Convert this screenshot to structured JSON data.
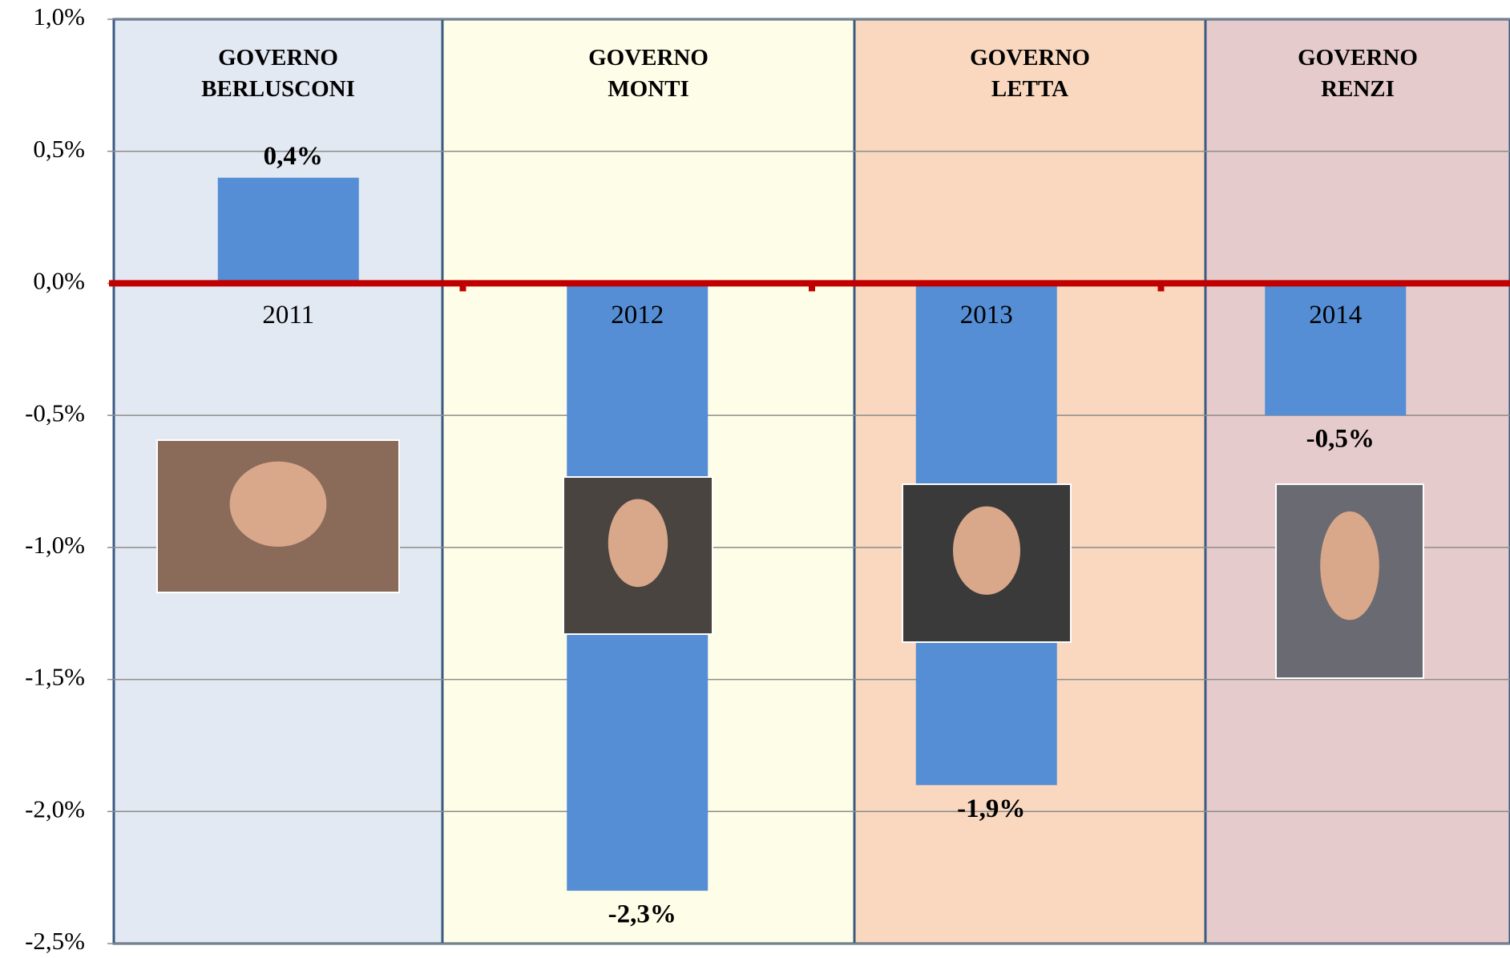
{
  "chart_data": {
    "type": "bar",
    "categories": [
      "2011",
      "2012",
      "2013",
      "2014"
    ],
    "values": [
      0.4,
      -2.3,
      -1.9,
      -0.5
    ],
    "value_labels": [
      "0,4%",
      "-2,3%",
      "-1,9%",
      "-0,5%"
    ],
    "color": "#558ed5",
    "ylim": [
      -2.5,
      1.0
    ],
    "yticks": [
      {
        "value": -2.5,
        "label": "-2,5%"
      },
      {
        "value": -2.0,
        "label": "-2,0%"
      },
      {
        "value": -1.5,
        "label": "-1,5%"
      },
      {
        "value": -1.0,
        "label": "-1,0%"
      },
      {
        "value": -0.5,
        "label": "-0,5%"
      },
      {
        "value": 0.0,
        "label": "0,0%"
      },
      {
        "value": 0.5,
        "label": "0,5%"
      },
      {
        "value": 1.0,
        "label": "1,0%"
      }
    ],
    "grid": true,
    "zero_line_color": "#c00000",
    "panels": [
      {
        "label": "GOVERNO BERLUSCONI",
        "color": "#e3e9f3"
      },
      {
        "label": "GOVERNO MONTI",
        "color": "#fefee8"
      },
      {
        "label": "GOVERNO LETTA",
        "color": "#f9d8bf"
      },
      {
        "label": "GOVERNO RENZI",
        "color": "#e6cbcc"
      }
    ]
  }
}
